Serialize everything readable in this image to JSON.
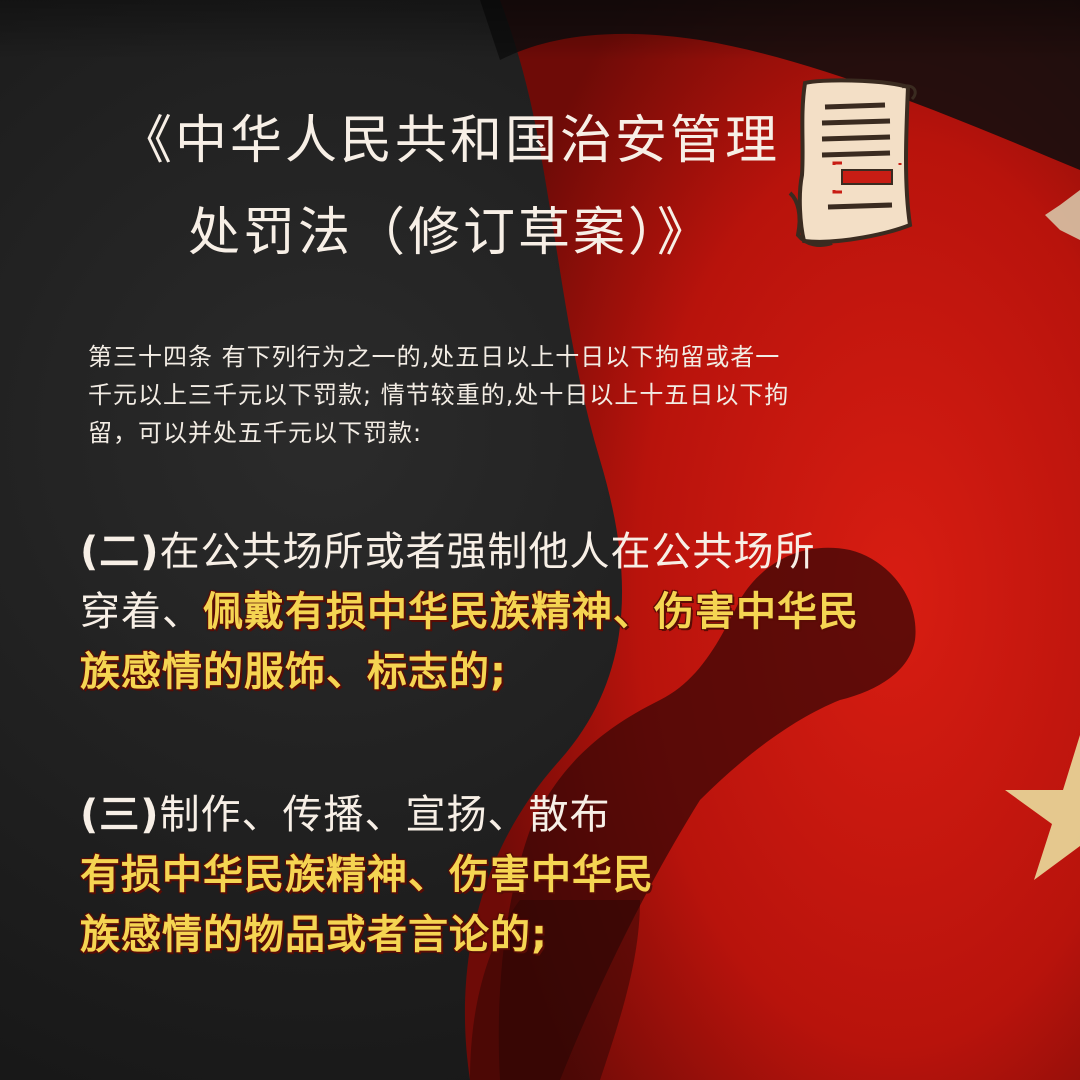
{
  "title": {
    "line1": "《中华人民共和国治安管理",
    "line2": "处罚法（修订草案）》"
  },
  "article": {
    "text_line1": "第三十四条 有下列行为之一的,处五日以上十日以下拘留或者一",
    "text_line2": "千元以上三千元以下罚款; 情节较重的,处十日以上十五日以下拘",
    "text_line3": "留，可以并处五千元以下罚款:"
  },
  "item2": {
    "marker": "(二)",
    "plain1": "在公共场所或者强制他人在公共场所",
    "plain2": "穿着、",
    "highlight1": "佩戴有损中华民族精神、伤害中华民",
    "highlight2": "族感情的服饰、标志的;"
  },
  "item3": {
    "marker": "(三)",
    "plain1": "制作、传播、宣扬、散布",
    "highlight1": "有损中华民族精神、伤害中华民",
    "highlight2": "族感情的物品或者言论的;"
  },
  "colors": {
    "dark_bg": "#1c1c1c",
    "red_flag": "#c8160f",
    "highlight": "#f5d552",
    "paper": "#f3dfc6"
  },
  "icons": {
    "document": "scroll-document-icon",
    "star": "flag-star"
  }
}
